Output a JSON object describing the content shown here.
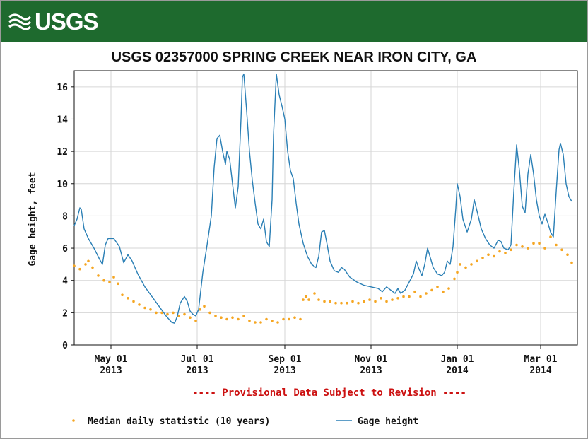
{
  "header": {
    "logo_text": "USGS"
  },
  "colors": {
    "banner": "#1e6a2e",
    "gage_line": "#2a7fb5",
    "median_points": "#f5a623",
    "provisional_text": "#cc1111"
  },
  "chart_data": {
    "type": "line",
    "title": "USGS 02357000 SPRING CREEK NEAR IRON CITY, GA",
    "ylabel": "Gage height, feet",
    "xlabel": "",
    "x_range": [
      "2013-04-05",
      "2014-03-27"
    ],
    "ylim": [
      0,
      17
    ],
    "yticks": [
      0,
      2,
      4,
      6,
      8,
      10,
      12,
      14,
      16
    ],
    "xticks": [
      {
        "date": "2013-05-01",
        "line1": "May 01",
        "line2": "2013"
      },
      {
        "date": "2013-07-01",
        "line1": "Jul 01",
        "line2": "2013"
      },
      {
        "date": "2013-09-01",
        "line1": "Sep 01",
        "line2": "2013"
      },
      {
        "date": "2013-11-01",
        "line1": "Nov 01",
        "line2": "2013"
      },
      {
        "date": "2014-01-01",
        "line1": "Jan 01",
        "line2": "2014"
      },
      {
        "date": "2014-03-01",
        "line1": "Mar 01",
        "line2": "2014"
      }
    ],
    "grid": true,
    "legend_position": "bottom",
    "provisional_note": "---- Provisional Data Subject to Revision ----",
    "series": [
      {
        "name": "Gage height",
        "style": "line",
        "points": [
          [
            "2013-04-05",
            7.4
          ],
          [
            "2013-04-07",
            7.8
          ],
          [
            "2013-04-09",
            8.5
          ],
          [
            "2013-04-10",
            8.4
          ],
          [
            "2013-04-12",
            7.2
          ],
          [
            "2013-04-15",
            6.6
          ],
          [
            "2013-04-19",
            6.0
          ],
          [
            "2013-04-23",
            5.3
          ],
          [
            "2013-04-25",
            5.0
          ],
          [
            "2013-04-27",
            6.2
          ],
          [
            "2013-04-29",
            6.6
          ],
          [
            "2013-05-03",
            6.6
          ],
          [
            "2013-05-07",
            6.1
          ],
          [
            "2013-05-10",
            5.1
          ],
          [
            "2013-05-13",
            5.6
          ],
          [
            "2013-05-16",
            5.2
          ],
          [
            "2013-05-20",
            4.4
          ],
          [
            "2013-05-25",
            3.6
          ],
          [
            "2013-05-30",
            3.0
          ],
          [
            "2013-06-04",
            2.4
          ],
          [
            "2013-06-09",
            1.8
          ],
          [
            "2013-06-13",
            1.4
          ],
          [
            "2013-06-15",
            1.35
          ],
          [
            "2013-06-17",
            1.8
          ],
          [
            "2013-06-19",
            2.6
          ],
          [
            "2013-06-22",
            3.0
          ],
          [
            "2013-06-24",
            2.7
          ],
          [
            "2013-06-26",
            2.1
          ],
          [
            "2013-06-28",
            1.9
          ],
          [
            "2013-06-30",
            1.8
          ],
          [
            "2013-07-02",
            2.2
          ],
          [
            "2013-07-05",
            4.5
          ],
          [
            "2013-07-08",
            6.2
          ],
          [
            "2013-07-11",
            8.0
          ],
          [
            "2013-07-13",
            11.0
          ],
          [
            "2013-07-15",
            12.8
          ],
          [
            "2013-07-17",
            13.0
          ],
          [
            "2013-07-19",
            12.0
          ],
          [
            "2013-07-21",
            11.2
          ],
          [
            "2013-07-22",
            12.0
          ],
          [
            "2013-07-24",
            11.5
          ],
          [
            "2013-07-26",
            10.0
          ],
          [
            "2013-07-28",
            8.5
          ],
          [
            "2013-07-30",
            9.8
          ],
          [
            "2013-08-01",
            14.0
          ],
          [
            "2013-08-02",
            16.6
          ],
          [
            "2013-08-03",
            16.8
          ],
          [
            "2013-08-05",
            14.5
          ],
          [
            "2013-08-07",
            12.0
          ],
          [
            "2013-08-09",
            10.2
          ],
          [
            "2013-08-11",
            8.8
          ],
          [
            "2013-08-13",
            7.5
          ],
          [
            "2013-08-15",
            7.2
          ],
          [
            "2013-08-17",
            7.8
          ],
          [
            "2013-08-19",
            6.4
          ],
          [
            "2013-08-21",
            6.1
          ],
          [
            "2013-08-23",
            9.0
          ],
          [
            "2013-08-24",
            13.0
          ],
          [
            "2013-08-26",
            16.8
          ],
          [
            "2013-08-28",
            15.5
          ],
          [
            "2013-08-30",
            14.8
          ],
          [
            "2013-09-01",
            14.0
          ],
          [
            "2013-09-03",
            12.0
          ],
          [
            "2013-09-05",
            10.8
          ],
          [
            "2013-09-07",
            10.3
          ],
          [
            "2013-09-09",
            8.8
          ],
          [
            "2013-09-11",
            7.5
          ],
          [
            "2013-09-14",
            6.3
          ],
          [
            "2013-09-17",
            5.5
          ],
          [
            "2013-09-20",
            5.0
          ],
          [
            "2013-09-23",
            4.8
          ],
          [
            "2013-09-25",
            5.5
          ],
          [
            "2013-09-27",
            7.0
          ],
          [
            "2013-09-29",
            7.1
          ],
          [
            "2013-10-01",
            6.2
          ],
          [
            "2013-10-03",
            5.2
          ],
          [
            "2013-10-06",
            4.6
          ],
          [
            "2013-10-09",
            4.5
          ],
          [
            "2013-10-11",
            4.8
          ],
          [
            "2013-10-13",
            4.7
          ],
          [
            "2013-10-17",
            4.2
          ],
          [
            "2013-10-22",
            3.9
          ],
          [
            "2013-10-27",
            3.7
          ],
          [
            "2013-11-01",
            3.6
          ],
          [
            "2013-11-06",
            3.5
          ],
          [
            "2013-11-09",
            3.3
          ],
          [
            "2013-11-12",
            3.6
          ],
          [
            "2013-11-15",
            3.4
          ],
          [
            "2013-11-18",
            3.2
          ],
          [
            "2013-11-20",
            3.5
          ],
          [
            "2013-11-22",
            3.2
          ],
          [
            "2013-11-25",
            3.4
          ],
          [
            "2013-11-28",
            3.9
          ],
          [
            "2013-12-01",
            4.4
          ],
          [
            "2013-12-03",
            5.2
          ],
          [
            "2013-12-05",
            4.7
          ],
          [
            "2013-12-07",
            4.3
          ],
          [
            "2013-12-09",
            5.0
          ],
          [
            "2013-12-11",
            6.0
          ],
          [
            "2013-12-13",
            5.4
          ],
          [
            "2013-12-15",
            4.8
          ],
          [
            "2013-12-18",
            4.4
          ],
          [
            "2013-12-21",
            4.3
          ],
          [
            "2013-12-23",
            4.5
          ],
          [
            "2013-12-25",
            5.2
          ],
          [
            "2013-12-27",
            5.0
          ],
          [
            "2013-12-29",
            6.1
          ],
          [
            "2013-12-31",
            8.5
          ],
          [
            "2014-01-01",
            10.0
          ],
          [
            "2014-01-03",
            9.2
          ],
          [
            "2014-01-05",
            7.8
          ],
          [
            "2014-01-08",
            7.0
          ],
          [
            "2014-01-11",
            7.8
          ],
          [
            "2014-01-13",
            9.0
          ],
          [
            "2014-01-15",
            8.3
          ],
          [
            "2014-01-18",
            7.2
          ],
          [
            "2014-01-21",
            6.6
          ],
          [
            "2014-01-24",
            6.2
          ],
          [
            "2014-01-27",
            6.0
          ],
          [
            "2014-01-30",
            6.5
          ],
          [
            "2014-02-01",
            6.4
          ],
          [
            "2014-02-03",
            6.0
          ],
          [
            "2014-02-06",
            5.9
          ],
          [
            "2014-02-08",
            6.2
          ],
          [
            "2014-02-10",
            9.5
          ],
          [
            "2014-02-12",
            12.4
          ],
          [
            "2014-02-14",
            10.8
          ],
          [
            "2014-02-16",
            8.6
          ],
          [
            "2014-02-18",
            8.2
          ],
          [
            "2014-02-20",
            10.6
          ],
          [
            "2014-02-22",
            11.8
          ],
          [
            "2014-02-24",
            10.6
          ],
          [
            "2014-02-26",
            9.0
          ],
          [
            "2014-02-28",
            8.0
          ],
          [
            "2014-03-02",
            7.5
          ],
          [
            "2014-03-04",
            8.1
          ],
          [
            "2014-03-06",
            7.6
          ],
          [
            "2014-03-08",
            7.0
          ],
          [
            "2014-03-10",
            6.7
          ],
          [
            "2014-03-12",
            9.5
          ],
          [
            "2014-03-14",
            12.1
          ],
          [
            "2014-03-15",
            12.5
          ],
          [
            "2014-03-17",
            11.8
          ],
          [
            "2014-03-19",
            10.0
          ],
          [
            "2014-03-21",
            9.2
          ],
          [
            "2014-03-23",
            8.9
          ]
        ]
      },
      {
        "name": "Median daily statistic (10 years)",
        "style": "points",
        "points": [
          [
            "2013-04-05",
            4.9
          ],
          [
            "2013-04-09",
            4.7
          ],
          [
            "2013-04-13",
            5.0
          ],
          [
            "2013-04-15",
            5.2
          ],
          [
            "2013-04-18",
            4.8
          ],
          [
            "2013-04-22",
            4.3
          ],
          [
            "2013-04-26",
            4.0
          ],
          [
            "2013-04-30",
            3.9
          ],
          [
            "2013-05-03",
            4.2
          ],
          [
            "2013-05-06",
            3.8
          ],
          [
            "2013-05-09",
            3.1
          ],
          [
            "2013-05-13",
            2.9
          ],
          [
            "2013-05-17",
            2.7
          ],
          [
            "2013-05-21",
            2.5
          ],
          [
            "2013-05-25",
            2.3
          ],
          [
            "2013-05-29",
            2.2
          ],
          [
            "2013-06-02",
            2.0
          ],
          [
            "2013-06-06",
            2.0
          ],
          [
            "2013-06-10",
            1.9
          ],
          [
            "2013-06-14",
            2.0
          ],
          [
            "2013-06-18",
            1.8
          ],
          [
            "2013-06-22",
            1.9
          ],
          [
            "2013-06-26",
            1.7
          ],
          [
            "2013-06-30",
            1.5
          ],
          [
            "2013-07-03",
            2.2
          ],
          [
            "2013-07-06",
            2.4
          ],
          [
            "2013-07-10",
            2.0
          ],
          [
            "2013-07-14",
            1.8
          ],
          [
            "2013-07-18",
            1.7
          ],
          [
            "2013-07-22",
            1.6
          ],
          [
            "2013-07-26",
            1.7
          ],
          [
            "2013-07-30",
            1.6
          ],
          [
            "2013-08-03",
            1.8
          ],
          [
            "2013-08-07",
            1.5
          ],
          [
            "2013-08-11",
            1.4
          ],
          [
            "2013-08-15",
            1.4
          ],
          [
            "2013-08-19",
            1.6
          ],
          [
            "2013-08-23",
            1.5
          ],
          [
            "2013-08-27",
            1.4
          ],
          [
            "2013-08-31",
            1.6
          ],
          [
            "2013-09-04",
            1.6
          ],
          [
            "2013-09-08",
            1.7
          ],
          [
            "2013-09-12",
            1.6
          ],
          [
            "2013-09-14",
            2.8
          ],
          [
            "2013-09-16",
            3.0
          ],
          [
            "2013-09-18",
            2.8
          ],
          [
            "2013-09-22",
            3.2
          ],
          [
            "2013-09-25",
            2.8
          ],
          [
            "2013-09-29",
            2.7
          ],
          [
            "2013-10-03",
            2.7
          ],
          [
            "2013-10-07",
            2.6
          ],
          [
            "2013-10-11",
            2.6
          ],
          [
            "2013-10-15",
            2.6
          ],
          [
            "2013-10-19",
            2.7
          ],
          [
            "2013-10-23",
            2.6
          ],
          [
            "2013-10-27",
            2.7
          ],
          [
            "2013-10-31",
            2.8
          ],
          [
            "2013-11-04",
            2.7
          ],
          [
            "2013-11-08",
            2.9
          ],
          [
            "2013-11-12",
            2.7
          ],
          [
            "2013-11-16",
            2.8
          ],
          [
            "2013-11-20",
            2.9
          ],
          [
            "2013-11-24",
            3.0
          ],
          [
            "2013-11-28",
            3.0
          ],
          [
            "2013-12-02",
            3.3
          ],
          [
            "2013-12-06",
            3.0
          ],
          [
            "2013-12-10",
            3.2
          ],
          [
            "2013-12-14",
            3.4
          ],
          [
            "2013-12-18",
            3.6
          ],
          [
            "2013-12-22",
            3.3
          ],
          [
            "2013-12-26",
            3.5
          ],
          [
            "2013-12-30",
            4.1
          ],
          [
            "2014-01-01",
            4.5
          ],
          [
            "2014-01-03",
            5.0
          ],
          [
            "2014-01-07",
            4.8
          ],
          [
            "2014-01-11",
            5.0
          ],
          [
            "2014-01-15",
            5.2
          ],
          [
            "2014-01-19",
            5.4
          ],
          [
            "2014-01-23",
            5.6
          ],
          [
            "2014-01-27",
            5.5
          ],
          [
            "2014-01-31",
            5.8
          ],
          [
            "2014-02-04",
            5.7
          ],
          [
            "2014-02-08",
            5.9
          ],
          [
            "2014-02-12",
            6.2
          ],
          [
            "2014-02-16",
            6.1
          ],
          [
            "2014-02-20",
            6.0
          ],
          [
            "2014-02-24",
            6.3
          ],
          [
            "2014-02-28",
            6.3
          ],
          [
            "2014-03-04",
            6.0
          ],
          [
            "2014-03-08",
            6.7
          ],
          [
            "2014-03-12",
            6.2
          ],
          [
            "2014-03-16",
            5.9
          ],
          [
            "2014-03-20",
            5.6
          ],
          [
            "2014-03-23",
            5.1
          ]
        ]
      }
    ]
  }
}
